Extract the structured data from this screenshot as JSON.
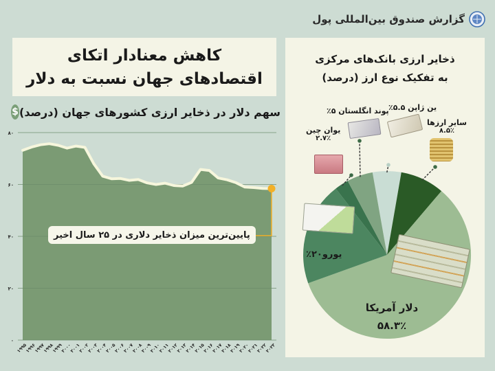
{
  "header": {
    "source": "گزارش صندوق بین‌المللی پول",
    "logo_icon": "imf-logo-icon"
  },
  "title": {
    "line1": "کاهش معنادار اتکای",
    "line2": "اقتصادهای جهان نسبت به دلار"
  },
  "line_section": {
    "subtitle": "سهم دلار در ذخایر ارزی کشورهای جهان (درصد)",
    "icon": "dollar-icon",
    "callout": "پایین‌ترین میزان ذخایر دلاری در ۲۵ سال اخیر"
  },
  "pie_section": {
    "title_line1": "ذخایر ارزی بانک‌های مرکزی",
    "title_line2": "به تفکیک نوع ارز (درصد)"
  },
  "colors": {
    "background": "#cddcd3",
    "panel": "#f4f4e6",
    "area_fill": "#7b9b74",
    "line": "#f6f6dc",
    "highlight": "#f2b027",
    "grid": "#6b8a6a"
  },
  "chart_data": [
    {
      "type": "area",
      "title": "سهم دلار در ذخایر ارزی کشورهای جهان (درصد)",
      "xlabel": "",
      "ylabel": "درصد",
      "ylim": [
        0,
        80
      ],
      "yticks": [
        0,
        20,
        40,
        60,
        80
      ],
      "ytick_labels": [
        "۰",
        "۲۰",
        "۴۰",
        "۶۰",
        "۸۰"
      ],
      "grid": true,
      "x": [
        1995,
        1996,
        1997,
        1998,
        1999,
        2000,
        2001,
        2002,
        2003,
        2004,
        2005,
        2006,
        2007,
        2008,
        2009,
        2010,
        2011,
        2012,
        2013,
        2014,
        2015,
        2016,
        2017,
        2018,
        2019,
        2020,
        2021,
        2022,
        2023
      ],
      "x_labels": [
        "۱۹۹۵",
        "۱۹۹۶",
        "۱۹۹۷",
        "۱۹۹۸",
        "۱۹۹۹",
        "۲۰۰۰",
        "۲۰۰۱",
        "۲۰۰۲",
        "۲۰۰۳",
        "۲۰۰۴",
        "۲۰۰۵",
        "۲۰۰۶",
        "۲۰۰۷",
        "۲۰۰۸",
        "۲۰۰۹",
        "۲۰۱۰",
        "۲۰۱۱",
        "۲۰۱۲",
        "۲۰۱۳",
        "۲۰۱۴",
        "۲۰۱۵",
        "۲۰۱۶",
        "۲۰۱۷",
        "۲۰۱۸",
        "۲۰۱۹",
        "۲۰۲۰",
        "۲۰۲۱",
        "۲۰۲۲",
        "۲۰۲۳"
      ],
      "values": [
        73.2,
        74.4,
        75.3,
        75.7,
        75.1,
        74.0,
        74.8,
        74.3,
        68.0,
        63.2,
        62.2,
        62.3,
        61.6,
        61.9,
        60.6,
        60.0,
        60.5,
        59.6,
        59.4,
        60.8,
        65.8,
        65.4,
        62.5,
        61.8,
        60.7,
        59.0,
        58.8,
        58.5,
        58.4
      ],
      "annotations": [
        {
          "x": 2023,
          "text": "پایین‌ترین میزان ذخایر دلاری در ۲۵ سال اخیر"
        }
      ]
    },
    {
      "type": "pie",
      "title": "ذخایر ارزی بانک‌های مرکزی به تفکیک نوع ارز (درصد)",
      "categories": [
        "ین ژاپن",
        "سایر ارزها",
        "دلار آمریکا",
        "یورو",
        "یوان چین",
        "پوند انگلستان"
      ],
      "values": [
        5.5,
        8.5,
        58.3,
        20,
        2.7,
        5
      ],
      "value_labels": [
        "۵.۵٪",
        "۸.۵٪",
        "۵۸.۳٪",
        "۲۰٪",
        "۲.۷٪",
        "۵٪"
      ],
      "colors": [
        "#c9ddd4",
        "#2a5a26",
        "#9dbc93",
        "#4c8660",
        "#39734d",
        "#80a482"
      ]
    }
  ]
}
